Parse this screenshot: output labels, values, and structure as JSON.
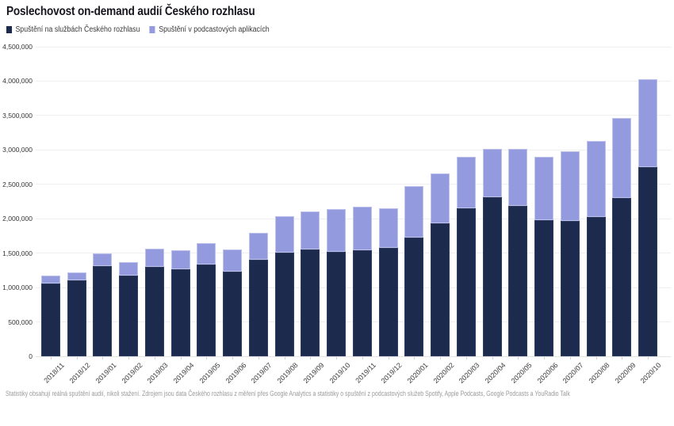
{
  "title": "Poslechovost on-demand audií Českého rozhlasu",
  "legend": [
    {
      "label": "Spuštění na službách Českého rozhlasu",
      "color": "#1b2a4d"
    },
    {
      "label": "Spuštění v podcastových aplikacích",
      "color": "#939ade"
    }
  ],
  "footer": "Statistiky obsahují reálná spuštění audií, nikoli stažení. Zdrojem jsou data Českého rozhlasu z měření přes Google Analytics a statistiky o spuštění z podcastových služeb Spotify, Apple Podcasts, Google Podcasts a YouRadio Talk",
  "chart_data": {
    "type": "bar",
    "stacked": true,
    "title": "Poslechovost on-demand audií Českého rozhlasu",
    "categories": [
      "2018/11",
      "2018/12",
      "2019/01",
      "2019/02",
      "2019/03",
      "2019/04",
      "2019/05",
      "2019/06",
      "2019/07",
      "2019/08",
      "2019/09",
      "2019/10",
      "2019/11",
      "2019/12",
      "2020/01",
      "2020/02",
      "2020/03",
      "2020/04",
      "2020/05",
      "2020/06",
      "2020/07",
      "2020/08",
      "2020/09",
      "2020/10"
    ],
    "series": [
      {
        "name": "Spuštění na službách Českého rozhlasu",
        "color": "#1b2a4d",
        "values": [
          1060000,
          1100000,
          1310000,
          1170000,
          1300000,
          1265000,
          1330000,
          1230000,
          1400000,
          1510000,
          1555000,
          1525000,
          1540000,
          1575000,
          1730000,
          1930000,
          2150000,
          2310000,
          2190000,
          1975000,
          1970000,
          2030000,
          2300000,
          2750000
        ]
      },
      {
        "name": "Spuštění v podcastových aplikacích",
        "color": "#939ade",
        "values": [
          110000,
          120000,
          190000,
          200000,
          270000,
          275000,
          320000,
          325000,
          400000,
          525000,
          555000,
          615000,
          640000,
          580000,
          740000,
          730000,
          750000,
          700000,
          830000,
          930000,
          1010000,
          1100000,
          1170000,
          1280000
        ]
      }
    ],
    "totals": [
      1170000,
      1220000,
      1500000,
      1370000,
      1570000,
      1540000,
      1650000,
      1555000,
      1800000,
      2035000,
      2110000,
      2140000,
      2180000,
      2155000,
      2470000,
      2660000,
      2900000,
      3010000,
      3020000,
      2905000,
      2980000,
      3130000,
      3470000,
      4030000
    ],
    "xlabel": "",
    "ylabel": "",
    "ylim": [
      0,
      4500000
    ],
    "y_ticks": [
      "0",
      "500,000",
      "1,000,000",
      "1,500,000",
      "2,000,000",
      "2,500,000",
      "3,000,000",
      "3,500,000",
      "4,000,000",
      "4,500,000"
    ],
    "grid": true,
    "legend_position": "top-left"
  }
}
